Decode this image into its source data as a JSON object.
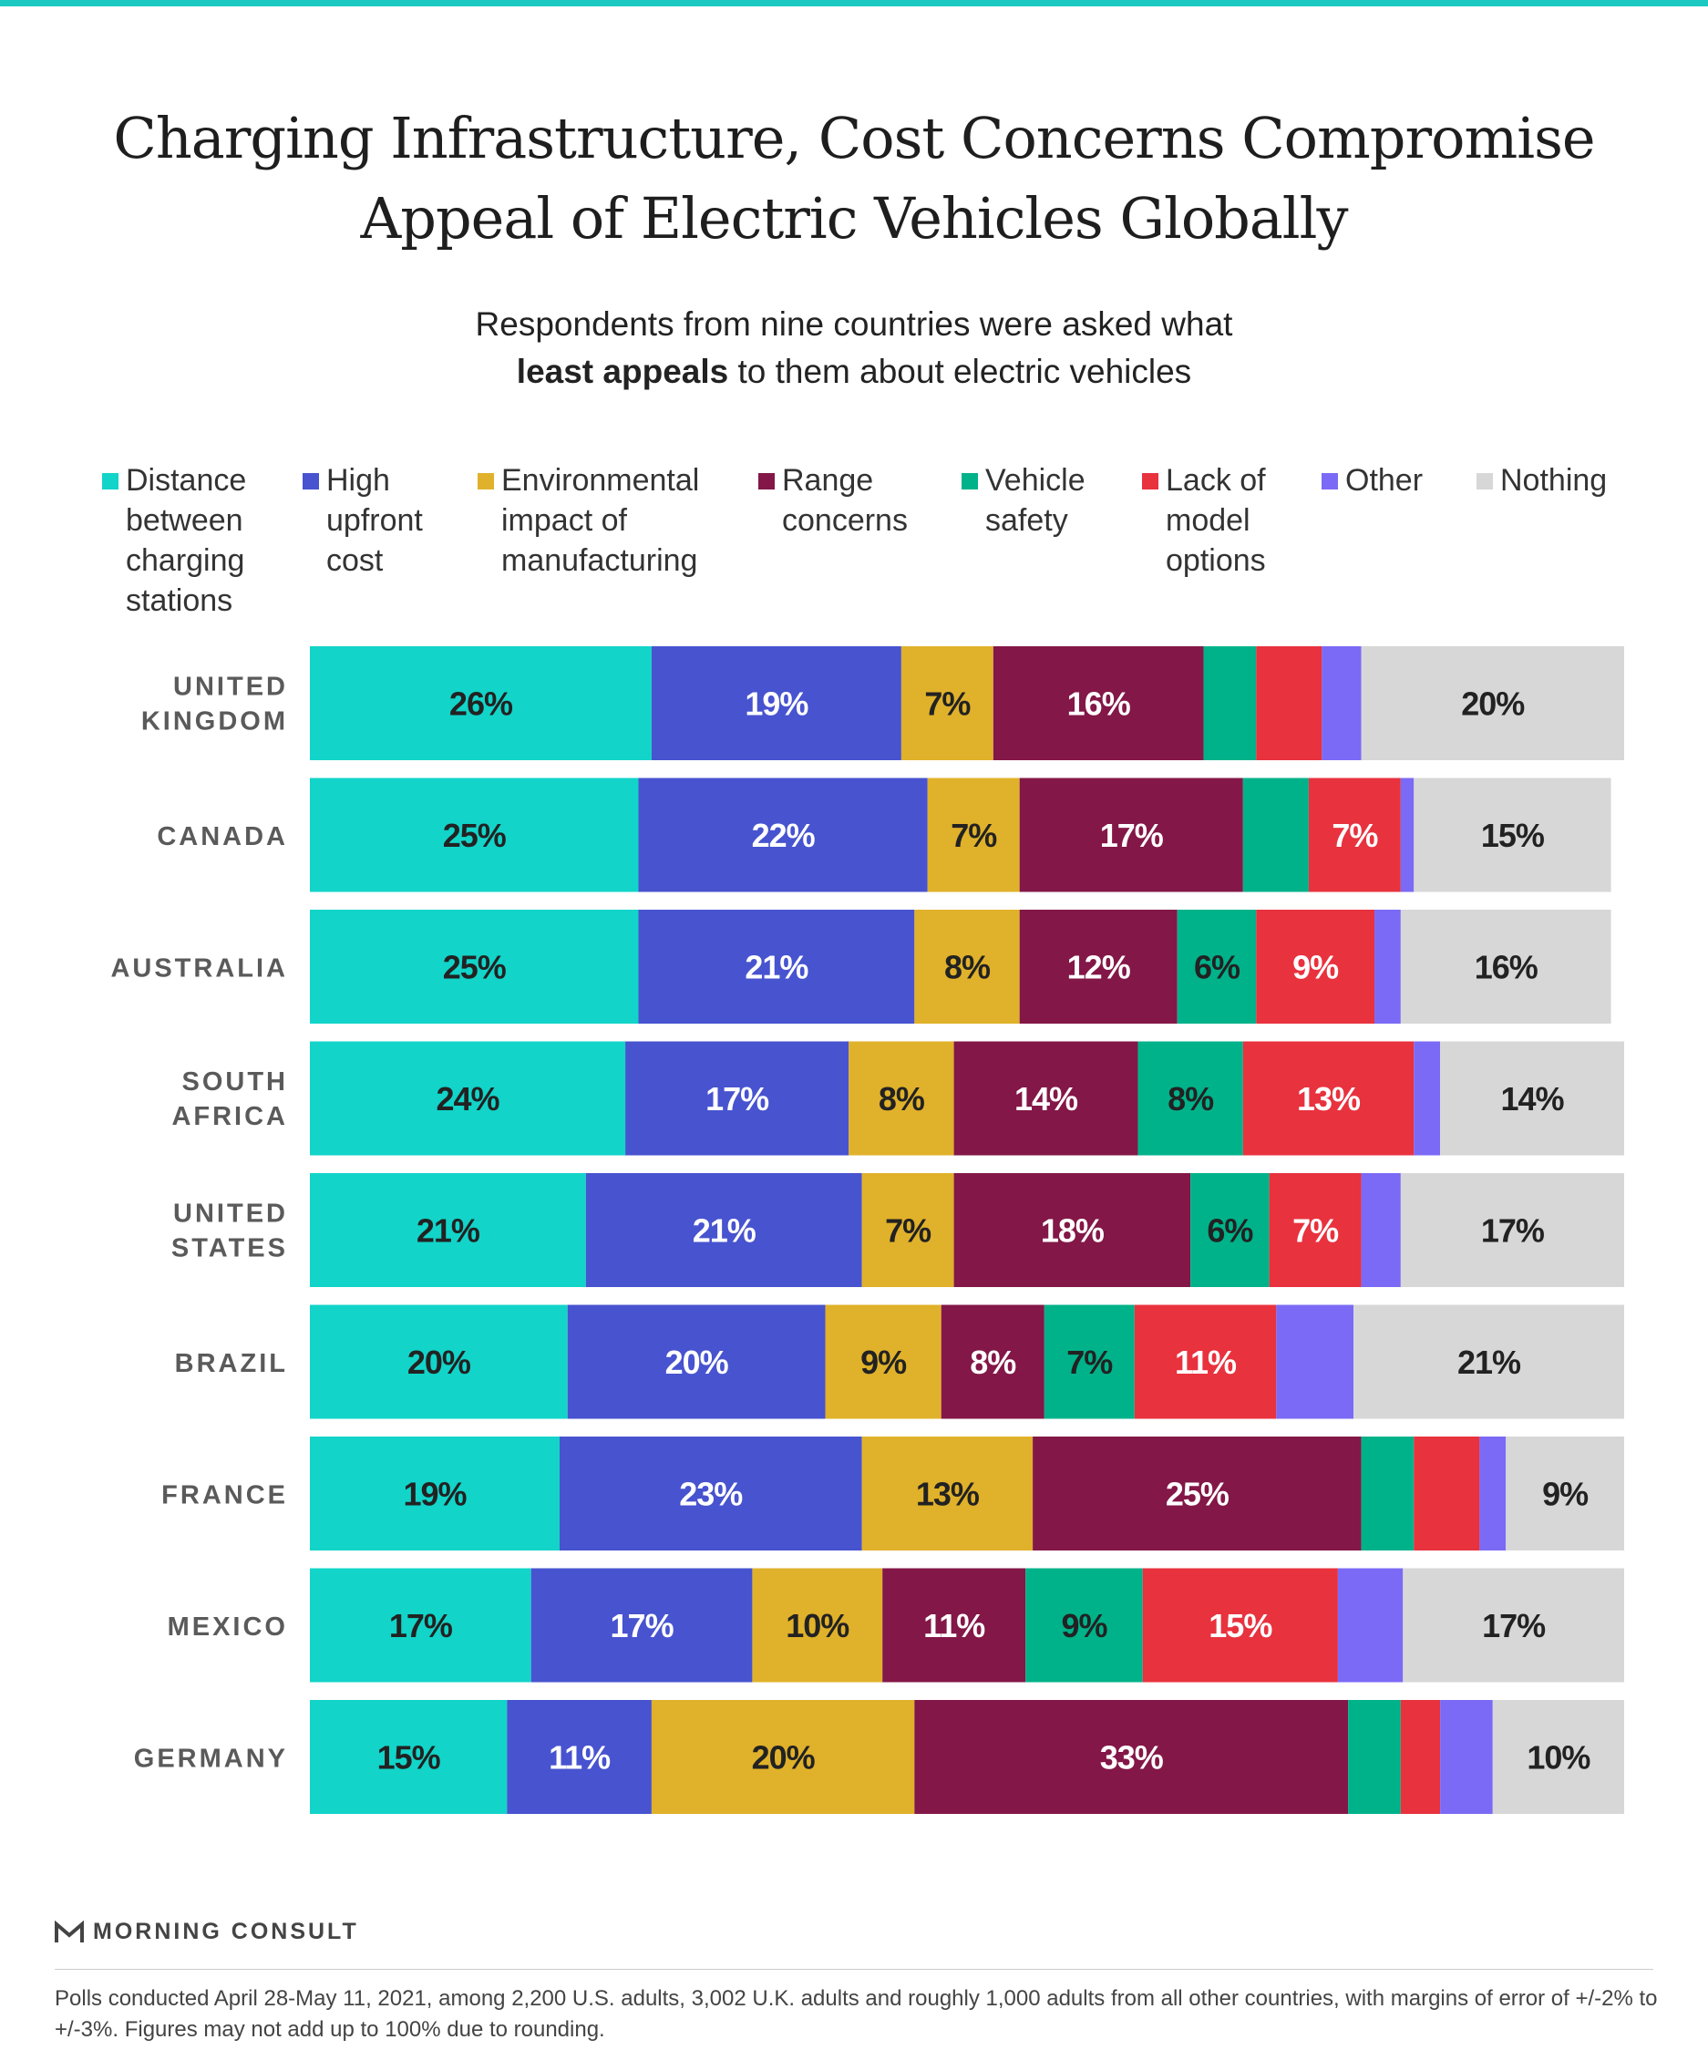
{
  "header": {
    "title_line1": "Charging Infrastructure, Cost Concerns Compromise",
    "title_line2": "Appeal of Electric Vehicles Globally",
    "subtitle_line1": "Respondents from nine countries were asked what",
    "subtitle_bold": "least appeals",
    "subtitle_rest": " to them about electric vehicles"
  },
  "legend": [
    {
      "label": "Distance\nbetween\ncharging\nstations",
      "color": "#12d4c9"
    },
    {
      "label": "High\nupfront\ncost",
      "color": "#4753cf"
    },
    {
      "label": "Environmental\nimpact of\nmanufacturing",
      "color": "#e0b12a"
    },
    {
      "label": "Range\nconcerns",
      "color": "#831747"
    },
    {
      "label": "Vehicle\nsafety",
      "color": "#00b28a"
    },
    {
      "label": "Lack of\nmodel\noptions",
      "color": "#e8323e"
    },
    {
      "label": "Other",
      "color": "#7b6af5"
    },
    {
      "label": "Nothing",
      "color": "#d7d7d7"
    }
  ],
  "chart_data": {
    "type": "bar",
    "orientation": "horizontal-stacked",
    "title": "Charging Infrastructure, Cost Concerns Compromise Appeal of Electric Vehicles Globally",
    "subtitle": "Respondents from nine countries were asked what least appeals to them about electric vehicles",
    "categories": [
      "UNITED KINGDOM",
      "CANADA",
      "AUSTRALIA",
      "SOUTH AFRICA",
      "UNITED STATES",
      "BRAZIL",
      "FRANCE",
      "MEXICO",
      "GERMANY"
    ],
    "series": [
      {
        "name": "Distance between charging stations",
        "values": [
          26,
          25,
          25,
          24,
          21,
          20,
          19,
          17,
          15
        ],
        "labels": [
          "26%",
          "25%",
          "25%",
          "24%",
          "21%",
          "20%",
          "19%",
          "17%",
          "15%"
        ]
      },
      {
        "name": "High upfront cost",
        "values": [
          19,
          22,
          21,
          17,
          21,
          20,
          23,
          17,
          11
        ],
        "labels": [
          "19%",
          "22%",
          "21%",
          "17%",
          "21%",
          "20%",
          "23%",
          "17%",
          "11%"
        ]
      },
      {
        "name": "Environmental impact of manufacturing",
        "values": [
          7,
          7,
          8,
          8,
          7,
          9,
          13,
          10,
          20
        ],
        "labels": [
          "7%",
          "7%",
          "8%",
          "8%",
          "7%",
          "9%",
          "13%",
          "10%",
          "20%"
        ]
      },
      {
        "name": "Range concerns",
        "values": [
          16,
          17,
          12,
          14,
          18,
          8,
          25,
          11,
          33
        ],
        "labels": [
          "16%",
          "17%",
          "12%",
          "14%",
          "18%",
          "8%",
          "25%",
          "11%",
          "33%"
        ]
      },
      {
        "name": "Vehicle safety",
        "values": [
          4,
          5,
          6,
          8,
          6,
          7,
          4,
          9,
          4
        ],
        "labels": [
          "",
          "",
          "6%",
          "8%",
          "6%",
          "7%",
          "",
          "9%",
          ""
        ]
      },
      {
        "name": "Lack of model options",
        "values": [
          5,
          7,
          9,
          13,
          7,
          11,
          5,
          15,
          3
        ],
        "labels": [
          "",
          "7%",
          "9%",
          "13%",
          "7%",
          "11%",
          "",
          "15%",
          ""
        ]
      },
      {
        "name": "Other",
        "values": [
          3,
          1,
          2,
          2,
          3,
          6,
          2,
          5,
          4
        ],
        "labels": [
          "",
          "",
          "",
          "",
          "",
          "",
          "",
          "",
          ""
        ]
      },
      {
        "name": "Nothing",
        "values": [
          20,
          15,
          16,
          14,
          17,
          21,
          9,
          17,
          10
        ],
        "labels": [
          "20%",
          "15%",
          "16%",
          "14%",
          "17%",
          "21%",
          "9%",
          "17%",
          "10%"
        ]
      }
    ],
    "label_colors": [
      "#222222",
      "#ffffff",
      "#222222",
      "#ffffff",
      "#222222",
      "#ffffff",
      "#ffffff",
      "#222222"
    ],
    "xlim": [
      0,
      100
    ],
    "grid": false,
    "legend_position": "top"
  },
  "footer": {
    "brand": "MORNING CONSULT",
    "note": "Polls conducted April 28-May 11, 2021, among 2,200 U.S. adults, 3,002 U.K. adults and roughly 1,000 adults from all other countries, with margins of error of +/-2% to +/-3%. Figures may not add up to 100% due to rounding."
  },
  "colors": {
    "accent": "#1bc9c2",
    "category_label": "#5a5a5a"
  }
}
